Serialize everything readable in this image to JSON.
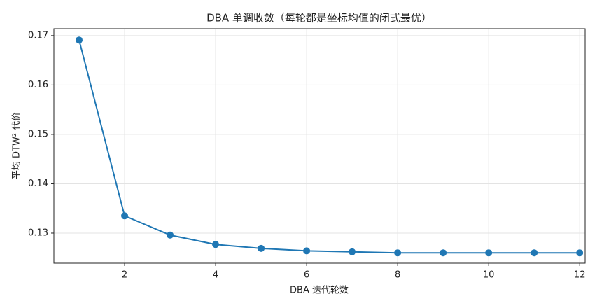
{
  "chart_data": {
    "type": "line",
    "title": "DBA 单调收敛（每轮都是坐标均值的闭式最优）",
    "x_label": "DBA 迭代轮数",
    "y_label": "平均 DTW² 代价",
    "x": [
      1,
      2,
      3,
      4,
      5,
      6,
      7,
      8,
      9,
      10,
      11,
      12
    ],
    "series": [
      {
        "name": "平均 DTW² 代价",
        "color": "#1f77b4",
        "values": [
          0.1691,
          0.1335,
          0.1296,
          0.1277,
          0.1269,
          0.1264,
          0.1262,
          0.126,
          0.126,
          0.126,
          0.126,
          0.126
        ]
      }
    ],
    "xlim": [
      0.446,
      12.12
    ],
    "xticks": [
      2,
      4,
      6,
      8,
      10,
      12
    ],
    "ylim": [
      0.1239,
      0.1714
    ],
    "yticks": [
      0.13,
      0.14,
      0.15,
      0.16,
      0.17
    ],
    "grid": true,
    "markers": true
  }
}
